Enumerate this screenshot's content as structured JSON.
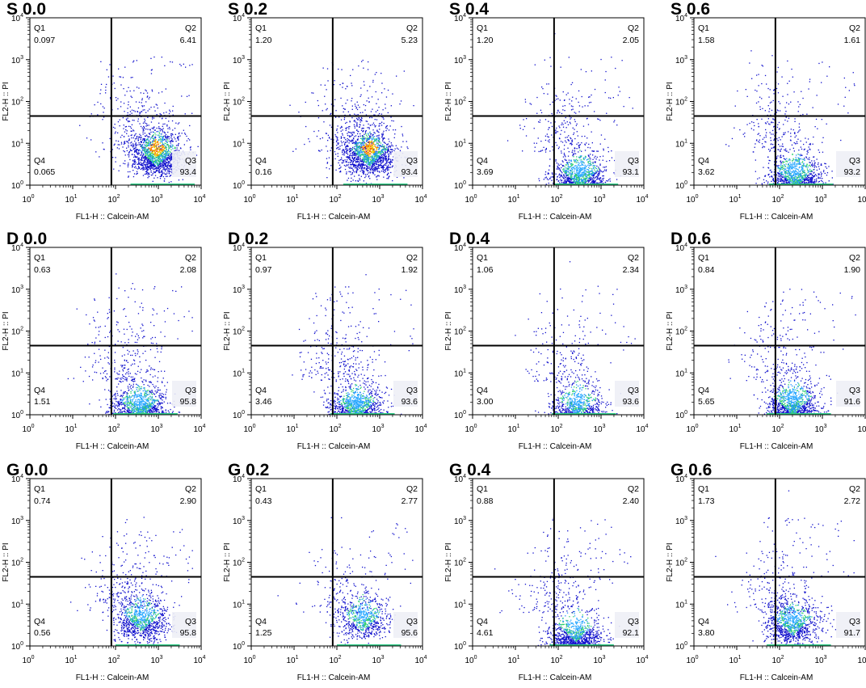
{
  "figure": {
    "xlabel": "FL1-H :: Calcein-AM",
    "ylabel": "FL2-H :: PI",
    "x_ticks": [
      "0",
      "1",
      "2",
      "3",
      "4"
    ],
    "y_ticks": [
      "0",
      "1",
      "2",
      "3",
      "4"
    ],
    "tick_base": "10",
    "quadrant_names": [
      "Q1",
      "Q2",
      "Q3",
      "Q4"
    ]
  },
  "chart_data": [
    {
      "type": "scatter",
      "title": "S 0.0",
      "x_scale": "log",
      "y_scale": "log",
      "xlim": [
        1,
        10000
      ],
      "ylim": [
        1,
        10000
      ],
      "gate": {
        "x": 80,
        "y": 45
      },
      "quadrants": {
        "Q1": "0.097",
        "Q2": "6.41",
        "Q3": "93.4",
        "Q4": "0.065"
      },
      "density": "high",
      "population": {
        "x_center_log": 2.95,
        "y_center_log": 0.9
      }
    },
    {
      "type": "scatter",
      "title": "S 0.2",
      "x_scale": "log",
      "y_scale": "log",
      "xlim": [
        1,
        10000
      ],
      "ylim": [
        1,
        10000
      ],
      "gate": {
        "x": 80,
        "y": 45
      },
      "quadrants": {
        "Q1": "1.20",
        "Q2": "5.23",
        "Q3": "93.4",
        "Q4": "0.16"
      },
      "density": "high",
      "population": {
        "x_center_log": 2.75,
        "y_center_log": 0.9
      }
    },
    {
      "type": "scatter",
      "title": "S 0.4",
      "x_scale": "log",
      "y_scale": "log",
      "xlim": [
        1,
        10000
      ],
      "ylim": [
        1,
        10000
      ],
      "gate": {
        "x": 80,
        "y": 45
      },
      "quadrants": {
        "Q1": "1.20",
        "Q2": "2.05",
        "Q3": "93.1",
        "Q4": "3.69"
      },
      "density": "medium",
      "population": {
        "x_center_log": 2.5,
        "y_center_log": 0.4
      }
    },
    {
      "type": "scatter",
      "title": "S 0.6",
      "x_scale": "log",
      "y_scale": "log",
      "xlim": [
        1,
        10000
      ],
      "ylim": [
        1,
        10000
      ],
      "gate": {
        "x": 80,
        "y": 45
      },
      "quadrants": {
        "Q1": "1.58",
        "Q2": "1.61",
        "Q3": "93.2",
        "Q4": "3.62"
      },
      "density": "medium",
      "population": {
        "x_center_log": 2.35,
        "y_center_log": 0.4
      }
    },
    {
      "type": "scatter",
      "title": "D 0.0",
      "x_scale": "log",
      "y_scale": "log",
      "xlim": [
        1,
        10000
      ],
      "ylim": [
        1,
        10000
      ],
      "gate": {
        "x": 80,
        "y": 45
      },
      "quadrants": {
        "Q1": "0.63",
        "Q2": "2.08",
        "Q3": "95.8",
        "Q4": "1.51"
      },
      "density": "medium",
      "population": {
        "x_center_log": 2.55,
        "y_center_log": 0.35
      }
    },
    {
      "type": "scatter",
      "title": "D 0.2",
      "x_scale": "log",
      "y_scale": "log",
      "xlim": [
        1,
        10000
      ],
      "ylim": [
        1,
        10000
      ],
      "gate": {
        "x": 80,
        "y": 45
      },
      "quadrants": {
        "Q1": "0.97",
        "Q2": "1.92",
        "Q3": "93.6",
        "Q4": "3.46"
      },
      "density": "medium",
      "population": {
        "x_center_log": 2.45,
        "y_center_log": 0.35
      }
    },
    {
      "type": "scatter",
      "title": "D 0.4",
      "x_scale": "log",
      "y_scale": "log",
      "xlim": [
        1,
        10000
      ],
      "ylim": [
        1,
        10000
      ],
      "gate": {
        "x": 80,
        "y": 45
      },
      "quadrants": {
        "Q1": "1.06",
        "Q2": "2.34",
        "Q3": "93.6",
        "Q4": "3.00"
      },
      "density": "low",
      "population": {
        "x_center_log": 2.45,
        "y_center_log": 0.4
      }
    },
    {
      "type": "scatter",
      "title": "D 0.6",
      "x_scale": "log",
      "y_scale": "log",
      "xlim": [
        1,
        10000
      ],
      "ylim": [
        1,
        10000
      ],
      "gate": {
        "x": 80,
        "y": 45
      },
      "quadrants": {
        "Q1": "0.84",
        "Q2": "1.90",
        "Q3": "91.6",
        "Q4": "5.65"
      },
      "density": "medium",
      "population": {
        "x_center_log": 2.3,
        "y_center_log": 0.45
      }
    },
    {
      "type": "scatter",
      "title": "G 0.0",
      "x_scale": "log",
      "y_scale": "log",
      "xlim": [
        1,
        10000
      ],
      "ylim": [
        1,
        10000
      ],
      "gate": {
        "x": 80,
        "y": 45
      },
      "quadrants": {
        "Q1": "0.74",
        "Q2": "2.90",
        "Q3": "95.8",
        "Q4": "0.56"
      },
      "density": "medium",
      "population": {
        "x_center_log": 2.6,
        "y_center_log": 0.8
      }
    },
    {
      "type": "scatter",
      "title": "G 0.2",
      "x_scale": "log",
      "y_scale": "log",
      "xlim": [
        1,
        10000
      ],
      "ylim": [
        1,
        10000
      ],
      "gate": {
        "x": 80,
        "y": 45
      },
      "quadrants": {
        "Q1": "0.43",
        "Q2": "2.77",
        "Q3": "95.6",
        "Q4": "1.25"
      },
      "density": "low",
      "population": {
        "x_center_log": 2.6,
        "y_center_log": 0.8
      }
    },
    {
      "type": "scatter",
      "title": "G 0.4",
      "x_scale": "log",
      "y_scale": "log",
      "xlim": [
        1,
        10000
      ],
      "ylim": [
        1,
        10000
      ],
      "gate": {
        "x": 80,
        "y": 45
      },
      "quadrants": {
        "Q1": "0.88",
        "Q2": "2.40",
        "Q3": "92.1",
        "Q4": "4.61"
      },
      "density": "medium",
      "population": {
        "x_center_log": 2.4,
        "y_center_log": 0.55
      }
    },
    {
      "type": "scatter",
      "title": "G 0.6",
      "x_scale": "log",
      "y_scale": "log",
      "xlim": [
        1,
        10000
      ],
      "ylim": [
        1,
        10000
      ],
      "gate": {
        "x": 80,
        "y": 45
      },
      "quadrants": {
        "Q1": "1.73",
        "Q2": "2.72",
        "Q3": "91.7",
        "Q4": "3.80"
      },
      "density": "medium",
      "population": {
        "x_center_log": 2.3,
        "y_center_log": 0.7
      }
    }
  ]
}
